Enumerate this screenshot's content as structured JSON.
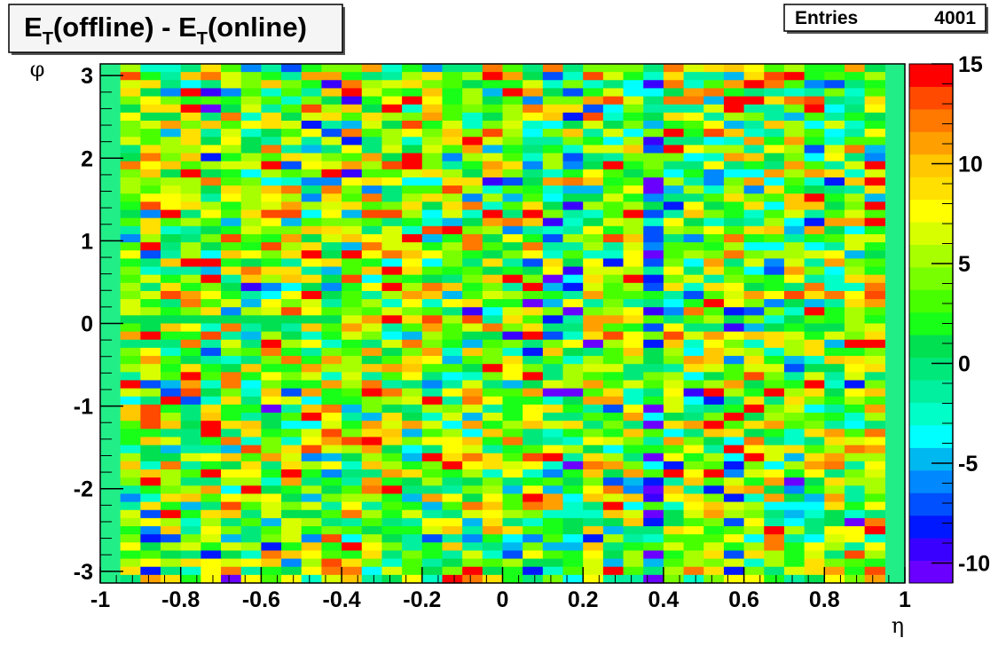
{
  "chart_data": {
    "type": "heatmap",
    "title": {
      "main": "E",
      "sub": "T",
      "text1": "(offline) - E",
      "sub2": "T",
      "text2": "(online)"
    },
    "stats": {
      "label": "Entries",
      "value": "4001"
    },
    "xlabel": "η",
    "ylabel": "φ",
    "xlim": [
      -1,
      1
    ],
    "ylim": [
      -3.1416,
      3.1416
    ],
    "zlim": [
      -11,
      15
    ],
    "x_ticks": [
      "-1",
      "-0.8",
      "-0.6",
      "-0.4",
      "-0.2",
      "0",
      "0.2",
      "0.4",
      "0.6",
      "0.8",
      "1"
    ],
    "x_tick_values": [
      -1,
      -0.8,
      -0.6,
      -0.4,
      -0.2,
      0,
      0.2,
      0.4,
      0.6,
      0.8,
      1
    ],
    "y_ticks": [
      "3",
      "2",
      "1",
      "0",
      "-1",
      "-2",
      "-3"
    ],
    "y_tick_values": [
      3,
      2,
      1,
      0,
      -1,
      -2,
      -3
    ],
    "z_ticks": [
      "15",
      "10",
      "5",
      "0",
      "-5",
      "-10"
    ],
    "z_tick_values": [
      15,
      10,
      5,
      0,
      -5,
      -10
    ],
    "grid": false,
    "n_eta_bins": 40,
    "n_phi_bins": 64,
    "palette": [
      "#6a00ff",
      "#3a00ff",
      "#0018ff",
      "#0050ff",
      "#0088ff",
      "#00b8f0",
      "#00ffff",
      "#00ffc8",
      "#00f0a0",
      "#00e87a",
      "#00e050",
      "#18ff18",
      "#48ff00",
      "#78ff00",
      "#a8ff00",
      "#d8ff00",
      "#ffff00",
      "#ffe000",
      "#ffc800",
      "#ffa000",
      "#ff7800",
      "#ff4a00",
      "#ff0000"
    ],
    "background_color": "#22ee88"
  }
}
